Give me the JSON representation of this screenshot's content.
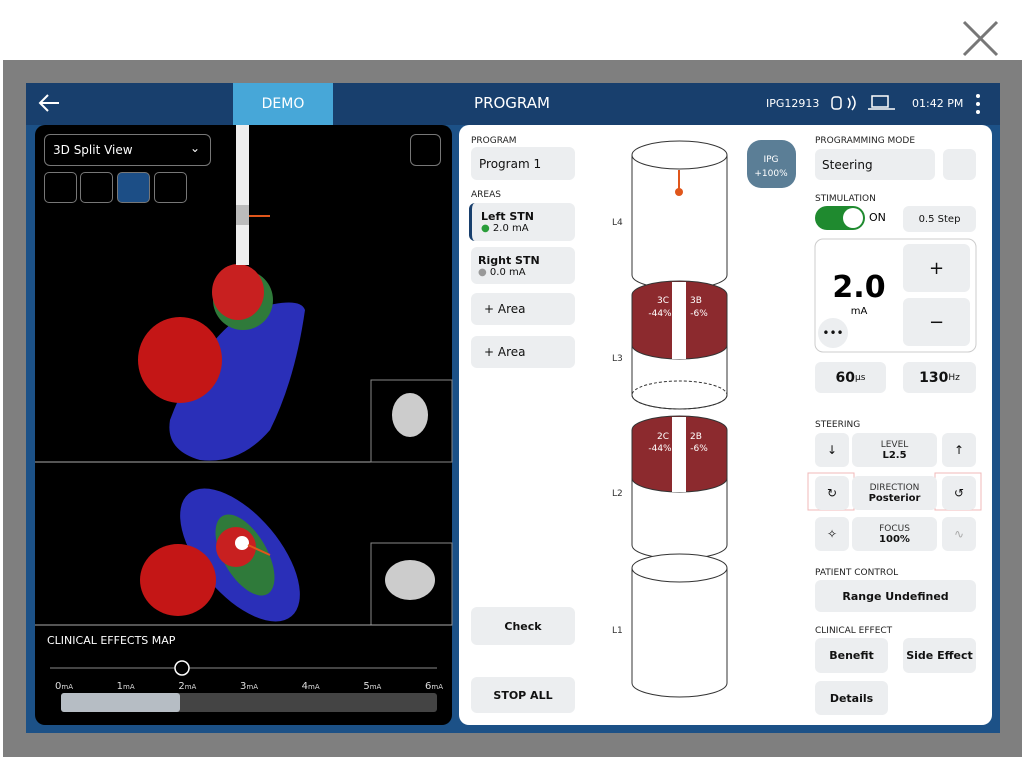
{
  "header": {
    "tab": "DEMO",
    "title": "PROGRAM",
    "device_id": "IPG12913",
    "time": "01:42 PM"
  },
  "left_panel": {
    "view": "3D Split View",
    "map_title": "CLINICAL EFFECTS MAP",
    "scale": [
      "0",
      "1",
      "2",
      "3",
      "4",
      "5",
      "6"
    ],
    "scale_unit": "mA"
  },
  "program_panel": {
    "program_label": "PROGRAM",
    "program": "Program 1",
    "areas_label": "AREAS",
    "areas": [
      {
        "name": "Left STN",
        "current": "2.0 mA"
      },
      {
        "name": "Right STN",
        "current": "0.0 mA"
      }
    ],
    "add_area": [
      "+ Area",
      "+ Area"
    ],
    "check": "Check",
    "stop": "STOP ALL"
  },
  "lead": {
    "levels": [
      "L4",
      "L3",
      "L2",
      "L1"
    ],
    "ipg": {
      "label": "IPG",
      "value": "+100%"
    },
    "contacts": [
      {
        "name": "3C",
        "value": "-44%"
      },
      {
        "name": "3B",
        "value": "-6%"
      },
      {
        "name": "2C",
        "value": "-44%"
      },
      {
        "name": "2B",
        "value": "-6%"
      }
    ]
  },
  "settings": {
    "mode_label": "PROGRAMMING MODE",
    "mode": "Steering",
    "stim_label": "STIMULATION",
    "stim_state": "ON",
    "step": "0.5 Step",
    "amplitude": "2.0",
    "amplitude_unit": "mA",
    "plus": "+",
    "minus": "−",
    "pulse_width": {
      "value": "60",
      "unit": "µs"
    },
    "rate": {
      "value": "130",
      "unit": "Hz"
    },
    "steering_label": "STEERING",
    "level": {
      "label": "LEVEL",
      "value": "L2.5"
    },
    "direction": {
      "label": "DIRECTION",
      "value": "Posterior"
    },
    "focus": {
      "label": "FOCUS",
      "value": "100%"
    },
    "patient_label": "PATIENT CONTROL",
    "patient_control": "Range Undefined",
    "effect_label": "CLINICAL EFFECT",
    "benefit": "Benefit",
    "side_effect": "Side Effect",
    "details": "Details"
  }
}
